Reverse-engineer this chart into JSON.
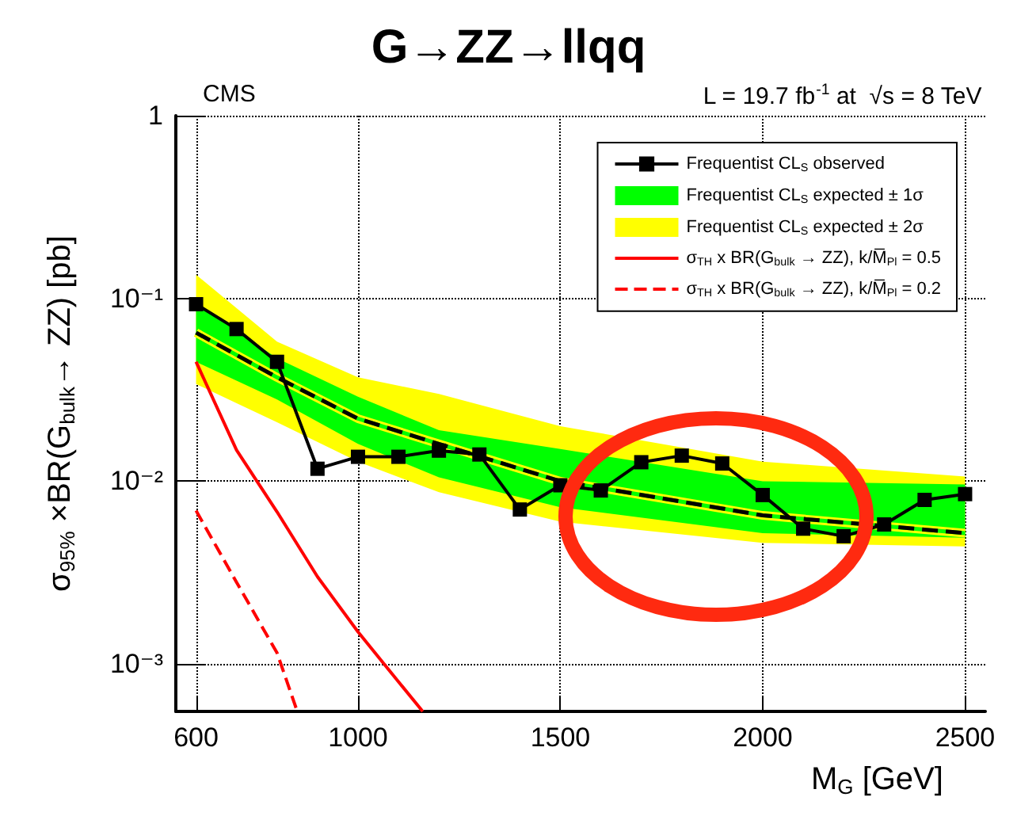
{
  "chart_data": {
    "type": "line",
    "title": "G→ZZ→llqq",
    "annotations": [
      "CMS",
      "L = 19.7 fb$^{-1}$ at  √s = 8 TeV"
    ],
    "xlabel": "M$_{G}$ [GeV]",
    "ylabel": "σ$_{95%}$ ×BR(G$_{bulk}$→ ZZ) [pb]",
    "log": "y",
    "grid": true,
    "legend": "top right",
    "xlim": [
      550,
      2550
    ],
    "xticks": [
      600,
      1000,
      1500,
      2000,
      2500
    ],
    "ylim": [
      0.00055,
      1
    ],
    "yticks": [
      {
        "value": 0.001,
        "label": "10⁻³"
      },
      {
        "value": 0.01,
        "label": "10⁻²"
      },
      {
        "value": 0.1,
        "label": "10⁻¹"
      },
      1
    ],
    "series": [
      {
        "name": "Frequentist CL$_{S}$ observed",
        "color": "#000000",
        "marker": "square",
        "line_style": "solid",
        "x": [
          600,
          700,
          800,
          900,
          1000,
          1100,
          1200,
          1300,
          1400,
          1500,
          1600,
          1700,
          1800,
          1900,
          2000,
          2100,
          2200,
          2300,
          2400,
          2500
        ],
        "values": [
          0.093,
          0.068,
          0.045,
          0.0117,
          0.0136,
          0.0136,
          0.0147,
          0.014,
          0.007,
          0.0095,
          0.0089,
          0.0127,
          0.0138,
          0.0125,
          0.0084,
          0.0055,
          0.005,
          0.0058,
          0.0079,
          0.0085
        ]
      },
      {
        "color": "#000000",
        "line_style": "dashed",
        "x": [
          600,
          800,
          1000,
          1200,
          1500,
          2000,
          2500
        ],
        "values": [
          0.065,
          0.037,
          0.022,
          0.016,
          0.01,
          0.0065,
          0.0052
        ]
      },
      {
        "name": "Frequentist CL$_{S}$ expected ± 1σ",
        "color": "#00ff00",
        "x": [
          600,
          800,
          1000,
          1200,
          1500,
          2000,
          2500
        ],
        "values": [
          0.065,
          0.037,
          0.022,
          0.016,
          0.01,
          0.0065,
          0.0052
        ],
        "lower": [
          0.045,
          0.028,
          0.016,
          0.0105,
          0.0072,
          0.0052,
          0.0049
        ],
        "upper": [
          0.095,
          0.047,
          0.029,
          0.019,
          0.015,
          0.01,
          0.0096
        ]
      },
      {
        "name": "Frequentist CL$_{S}$ expected ± 2σ",
        "color": "#ffff00",
        "x": [
          600,
          800,
          1000,
          1200,
          1500,
          2000,
          2500
        ],
        "values": [
          0.065,
          0.037,
          0.022,
          0.016,
          0.01,
          0.0065,
          0.0052
        ],
        "lower": [
          0.034,
          0.021,
          0.0128,
          0.0087,
          0.006,
          0.0046,
          0.0044
        ],
        "upper": [
          0.135,
          0.058,
          0.037,
          0.03,
          0.02,
          0.0128,
          0.0106
        ]
      },
      {
        "name": "σ$_{TH}$ x BR(G$_{bulk}$ → ZZ), k/M̅$_{Pl}$ = 0.5",
        "color": "#ff0000",
        "line_style": "solid",
        "x": [
          600,
          700,
          800,
          900,
          1000,
          1100,
          1160
        ],
        "values": [
          0.045,
          0.0148,
          0.0068,
          0.003,
          0.0015,
          0.0008,
          0.00055
        ]
      },
      {
        "name": "σ$_{TH}$ x BR(G$_{bulk}$ → ZZ), k/M̅$_{Pl}$ = 0.2",
        "color": "#ff0000",
        "line_style": "dashed",
        "x": [
          600,
          700,
          800,
          850
        ],
        "values": [
          0.0069,
          0.0028,
          0.00115,
          0.00055
        ]
      }
    ]
  }
}
